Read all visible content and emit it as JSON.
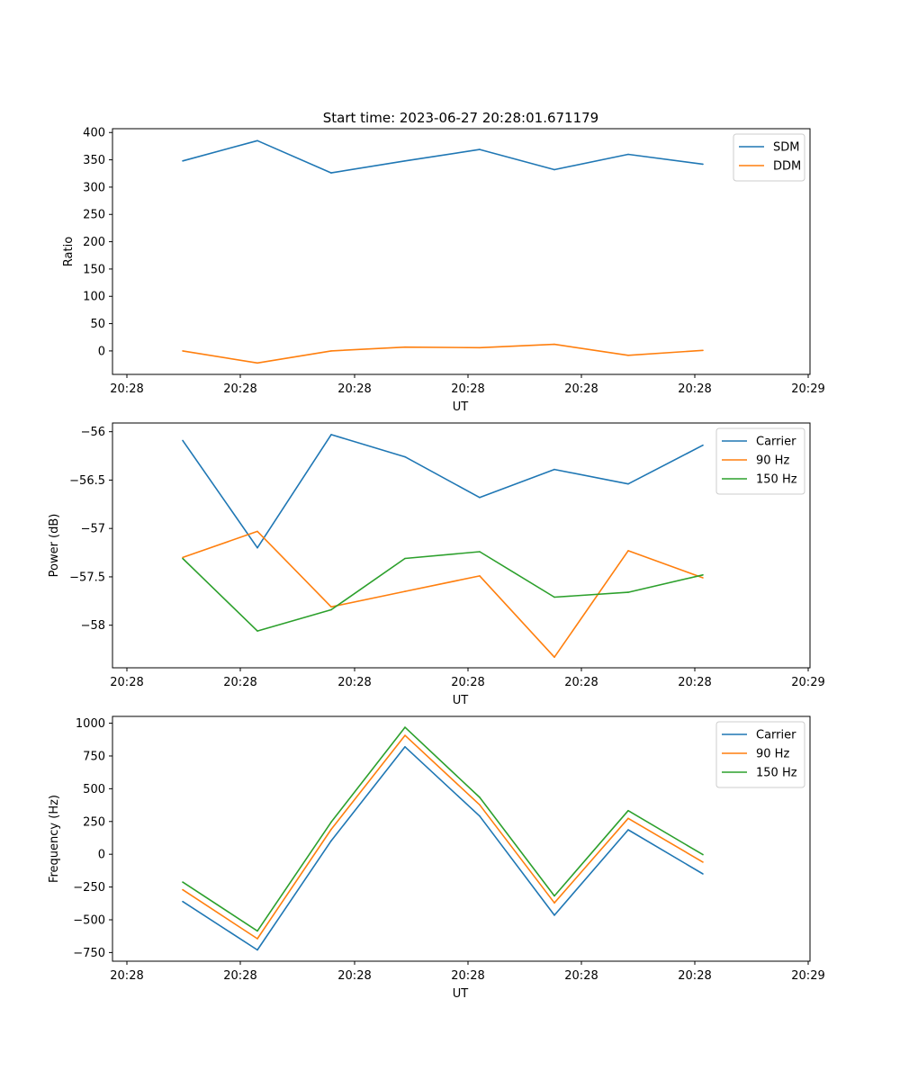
{
  "figure": {
    "title": "Start time: 2023-06-27 20:28:01.671179"
  },
  "chart_data": [
    {
      "type": "line",
      "title": "Start time: 2023-06-27 20:28:01.671179",
      "xlabel": "UT",
      "ylabel": "Ratio",
      "xticks": [
        "20:28",
        "20:28",
        "20:28",
        "20:28",
        "20:28",
        "20:28",
        "20:29"
      ],
      "yticks": [
        0,
        50,
        100,
        150,
        200,
        250,
        300,
        350,
        400
      ],
      "ylim": [
        -43,
        407
      ],
      "grid": false,
      "legend_position": "top-right",
      "series": [
        {
          "name": "SDM",
          "color": "#1f77b4",
          "values": [
            348,
            385,
            326,
            348,
            369,
            332,
            360,
            342
          ]
        },
        {
          "name": "DDM",
          "color": "#ff7f0e",
          "values": [
            0,
            -22,
            0,
            7,
            6,
            12,
            -8,
            1
          ]
        }
      ]
    },
    {
      "type": "line",
      "title": "",
      "xlabel": "UT",
      "ylabel": "Power (dB)",
      "xticks": [
        "20:28",
        "20:28",
        "20:28",
        "20:28",
        "20:28",
        "20:28",
        "20:29"
      ],
      "yticks": [
        -56.0,
        -56.5,
        -57.0,
        -57.5,
        -58.0
      ],
      "ylim": [
        -58.44,
        -55.91
      ],
      "grid": false,
      "legend_position": "top-right",
      "series": [
        {
          "name": "Carrier",
          "color": "#1f77b4",
          "values": [
            -56.09,
            -57.2,
            -56.03,
            -56.26,
            -56.68,
            -56.39,
            -56.54,
            -56.14
          ]
        },
        {
          "name": "90 Hz",
          "color": "#ff7f0e",
          "values": [
            -57.3,
            -57.03,
            -57.81,
            -57.65,
            -57.49,
            -58.33,
            -57.23,
            -57.51
          ]
        },
        {
          "name": "150 Hz",
          "color": "#2ca02c",
          "values": [
            -57.31,
            -58.06,
            -57.84,
            -57.31,
            -57.24,
            -57.71,
            -57.66,
            -57.48
          ]
        }
      ]
    },
    {
      "type": "line",
      "title": "",
      "xlabel": "UT",
      "ylabel": "Frequency (Hz)",
      "xticks": [
        "20:28",
        "20:28",
        "20:28",
        "20:28",
        "20:28",
        "20:28",
        "20:29"
      ],
      "yticks": [
        -750,
        -500,
        -250,
        0,
        250,
        500,
        750,
        1000
      ],
      "ylim": [
        -816,
        1052
      ],
      "grid": false,
      "legend_position": "top-right",
      "series": [
        {
          "name": "Carrier",
          "color": "#1f77b4",
          "values": [
            -361,
            -730,
            103,
            820,
            291,
            -465,
            187,
            -150
          ]
        },
        {
          "name": "90 Hz",
          "color": "#ff7f0e",
          "values": [
            -271,
            -644,
            190,
            907,
            377,
            -371,
            274,
            -60
          ]
        },
        {
          "name": "150 Hz",
          "color": "#2ca02c",
          "values": [
            -212,
            -585,
            246,
            969,
            434,
            -318,
            333,
            -3
          ]
        }
      ]
    }
  ]
}
